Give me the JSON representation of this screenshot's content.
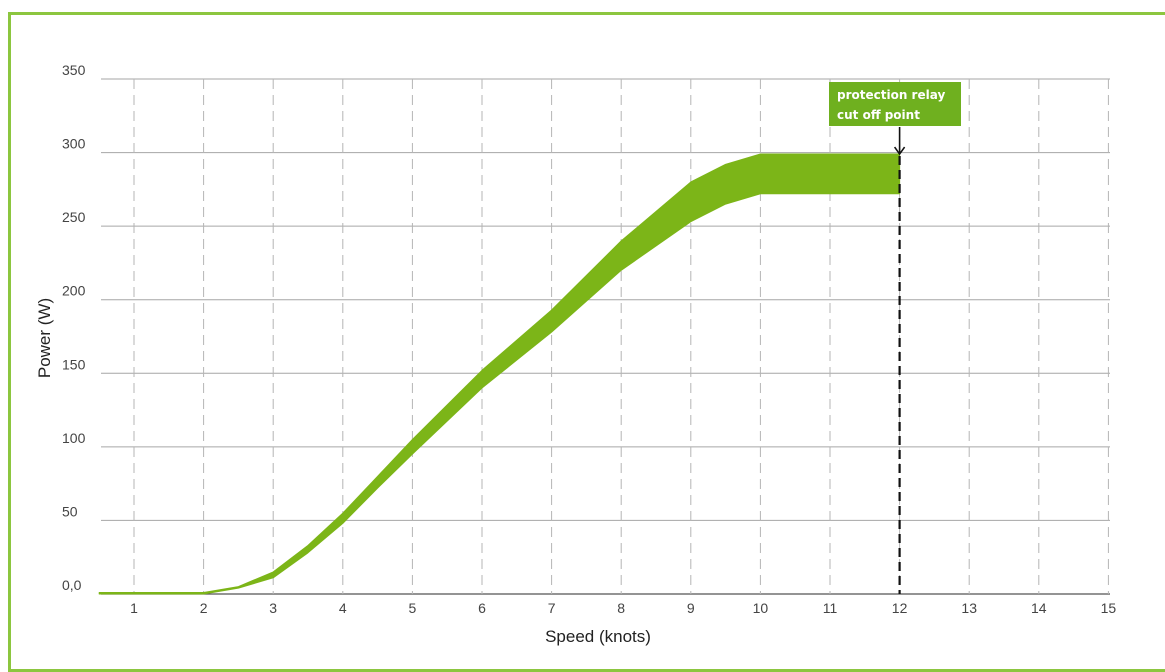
{
  "chart_data": {
    "type": "area",
    "xlabel": "Speed (knots)",
    "ylabel": "Power (W)",
    "xlim": [
      0.5,
      15
    ],
    "ylim": [
      0,
      350
    ],
    "x_ticks": [
      1,
      2,
      3,
      4,
      5,
      6,
      7,
      8,
      9,
      10,
      11,
      12,
      13,
      14,
      15
    ],
    "x_tick_labels": [
      "1",
      "2",
      "3",
      "4",
      "5",
      "6",
      "7",
      "8",
      "9",
      "10",
      "11",
      "12",
      "13",
      "14",
      "15"
    ],
    "y_ticks": [
      0,
      50,
      100,
      150,
      200,
      250,
      300,
      350
    ],
    "y_tick_labels": [
      "0,0",
      "50",
      "100",
      "150",
      "200",
      "250",
      "300",
      "350"
    ],
    "grid": {
      "horizontal": "solid",
      "vertical": "dashed"
    },
    "band": {
      "color": "#7cb518",
      "x": [
        0.5,
        2.0,
        2.5,
        3.0,
        3.5,
        4.0,
        4.5,
        5.0,
        6.0,
        7.0,
        8.0,
        9.0,
        9.5,
        10.0,
        11.0,
        12.0
      ],
      "upper": [
        1,
        1,
        5,
        15,
        33,
        55,
        80,
        105,
        152,
        193,
        240,
        280,
        292,
        299,
        299,
        299
      ],
      "lower": [
        0,
        0,
        4,
        11,
        28,
        48,
        72,
        95,
        140,
        178,
        220,
        253,
        265,
        272,
        272,
        272
      ]
    },
    "cutoff": {
      "x": 12,
      "arrow_y": 299
    },
    "annotation": {
      "line1": "protection relay",
      "line2": "cut off point",
      "color": "#6fb01f"
    }
  }
}
